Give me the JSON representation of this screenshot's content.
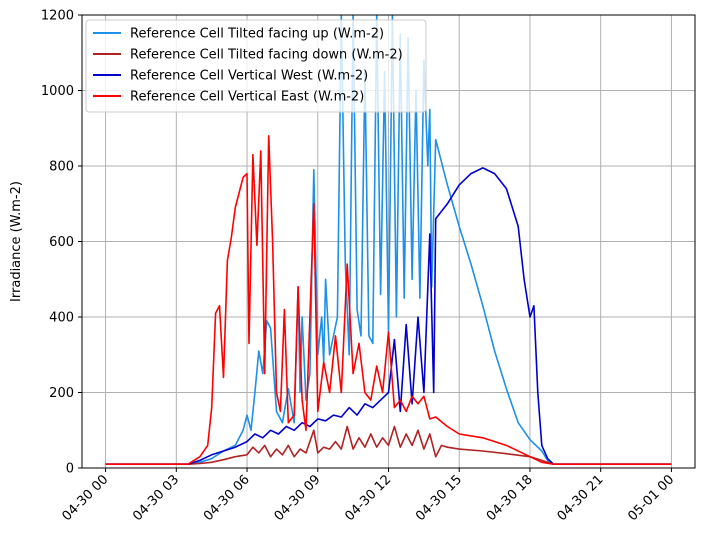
{
  "chart_data": {
    "type": "line",
    "title": "",
    "xlabel": "",
    "ylabel": "Irradiance (W.m-2)",
    "ylim": [
      0,
      1200
    ],
    "xlim": [
      "04-29 23:00",
      "05-01 01:00"
    ],
    "yticks": [
      0,
      200,
      400,
      600,
      800,
      1000,
      1200
    ],
    "xticks": [
      "04-30 00",
      "04-30 03",
      "04-30 06",
      "04-30 09",
      "04-30 12",
      "04-30 15",
      "04-30 18",
      "04-30 21",
      "05-01 00"
    ],
    "grid": true,
    "legend_position": "upper-left",
    "series": [
      {
        "name": "Reference Cell Tilted facing up (W.m-2)",
        "color": "#1E90E8",
        "points": [
          [
            "04-30 00:00",
            10
          ],
          [
            "04-30 03:00",
            10
          ],
          [
            "04-30 03:30",
            10
          ],
          [
            "04-30 04:00",
            15
          ],
          [
            "04-30 04:30",
            25
          ],
          [
            "04-30 05:00",
            45
          ],
          [
            "04-30 05:30",
            60
          ],
          [
            "04-30 05:50",
            100
          ],
          [
            "04-30 06:00",
            140
          ],
          [
            "04-30 06:10",
            100
          ],
          [
            "04-30 06:20",
            200
          ],
          [
            "04-30 06:30",
            310
          ],
          [
            "04-30 06:40",
            250
          ],
          [
            "04-30 06:50",
            390
          ],
          [
            "04-30 07:00",
            370
          ],
          [
            "04-30 07:15",
            150
          ],
          [
            "04-30 07:30",
            120
          ],
          [
            "04-30 07:45",
            210
          ],
          [
            "04-30 08:00",
            120
          ],
          [
            "04-30 08:10",
            480
          ],
          [
            "04-30 08:15",
            200
          ],
          [
            "04-30 08:20",
            400
          ],
          [
            "04-30 08:30",
            180
          ],
          [
            "04-30 08:40",
            250
          ],
          [
            "04-30 08:50",
            790
          ],
          [
            "04-30 09:00",
            300
          ],
          [
            "04-30 09:10",
            400
          ],
          [
            "04-30 09:15",
            280
          ],
          [
            "04-30 09:20",
            500
          ],
          [
            "04-30 09:30",
            300
          ],
          [
            "04-30 09:40",
            350
          ],
          [
            "04-30 09:50",
            400
          ],
          [
            "04-30 10:00",
            1200
          ],
          [
            "04-30 10:10",
            540
          ],
          [
            "04-30 10:20",
            300
          ],
          [
            "04-30 10:30",
            1200
          ],
          [
            "04-30 10:40",
            420
          ],
          [
            "04-30 10:50",
            350
          ],
          [
            "04-30 11:00",
            1050
          ],
          [
            "04-30 11:10",
            350
          ],
          [
            "04-30 11:20",
            330
          ],
          [
            "04-30 11:30",
            1200
          ],
          [
            "04-30 11:40",
            460
          ],
          [
            "04-30 11:50",
            1050
          ],
          [
            "04-30 12:00",
            360
          ],
          [
            "04-30 12:10",
            1200
          ],
          [
            "04-30 12:20",
            400
          ],
          [
            "04-30 12:30",
            1150
          ],
          [
            "04-30 12:40",
            450
          ],
          [
            "04-30 12:50",
            1140
          ],
          [
            "04-30 13:00",
            500
          ],
          [
            "04-30 13:10",
            1000
          ],
          [
            "04-30 13:20",
            450
          ],
          [
            "04-30 13:30",
            1080
          ],
          [
            "04-30 13:40",
            800
          ],
          [
            "04-30 13:45",
            950
          ],
          [
            "04-30 13:50",
            480
          ],
          [
            "04-30 14:00",
            870
          ],
          [
            "04-30 14:30",
            750
          ],
          [
            "04-30 15:00",
            640
          ],
          [
            "04-30 15:30",
            540
          ],
          [
            "04-30 16:00",
            430
          ],
          [
            "04-30 16:30",
            310
          ],
          [
            "04-30 17:00",
            210
          ],
          [
            "04-30 17:30",
            120
          ],
          [
            "04-30 18:00",
            75
          ],
          [
            "04-30 18:30",
            45
          ],
          [
            "04-30 18:45",
            20
          ],
          [
            "04-30 19:00",
            10
          ],
          [
            "05-01 00:00",
            10
          ]
        ]
      },
      {
        "name": "Reference Cell Tilted facing down (W.m-2)",
        "color": "#B22222",
        "points": [
          [
            "04-30 00:00",
            10
          ],
          [
            "04-30 03:00",
            10
          ],
          [
            "04-30 03:30",
            10
          ],
          [
            "04-30 04:00",
            12
          ],
          [
            "04-30 04:30",
            15
          ],
          [
            "04-30 05:00",
            22
          ],
          [
            "04-30 05:30",
            30
          ],
          [
            "04-30 06:00",
            35
          ],
          [
            "04-30 06:15",
            55
          ],
          [
            "04-30 06:30",
            40
          ],
          [
            "04-30 06:45",
            60
          ],
          [
            "04-30 07:00",
            30
          ],
          [
            "04-30 07:15",
            50
          ],
          [
            "04-30 07:30",
            35
          ],
          [
            "04-30 07:45",
            60
          ],
          [
            "04-30 08:00",
            30
          ],
          [
            "04-30 08:15",
            50
          ],
          [
            "04-30 08:30",
            40
          ],
          [
            "04-30 08:50",
            100
          ],
          [
            "04-30 09:00",
            40
          ],
          [
            "04-30 09:15",
            55
          ],
          [
            "04-30 09:30",
            50
          ],
          [
            "04-30 09:45",
            70
          ],
          [
            "04-30 10:00",
            50
          ],
          [
            "04-30 10:15",
            110
          ],
          [
            "04-30 10:30",
            50
          ],
          [
            "04-30 10:45",
            80
          ],
          [
            "04-30 11:00",
            55
          ],
          [
            "04-30 11:15",
            90
          ],
          [
            "04-30 11:30",
            55
          ],
          [
            "04-30 11:45",
            80
          ],
          [
            "04-30 12:00",
            60
          ],
          [
            "04-30 12:15",
            110
          ],
          [
            "04-30 12:30",
            55
          ],
          [
            "04-30 12:45",
            90
          ],
          [
            "04-30 13:00",
            60
          ],
          [
            "04-30 13:15",
            100
          ],
          [
            "04-30 13:30",
            50
          ],
          [
            "04-30 13:45",
            90
          ],
          [
            "04-30 14:00",
            30
          ],
          [
            "04-30 14:15",
            60
          ],
          [
            "04-30 14:30",
            55
          ],
          [
            "04-30 15:00",
            50
          ],
          [
            "04-30 16:00",
            45
          ],
          [
            "04-30 17:00",
            38
          ],
          [
            "04-30 18:00",
            30
          ],
          [
            "04-30 18:30",
            20
          ],
          [
            "04-30 19:00",
            10
          ],
          [
            "05-01 00:00",
            10
          ]
        ]
      },
      {
        "name": "Reference Cell Vertical West (W.m-2)",
        "color": "#0000CD",
        "points": [
          [
            "04-30 00:00",
            10
          ],
          [
            "04-30 03:00",
            10
          ],
          [
            "04-30 03:30",
            10
          ],
          [
            "04-30 04:00",
            20
          ],
          [
            "04-30 04:30",
            35
          ],
          [
            "04-30 05:00",
            45
          ],
          [
            "04-30 05:30",
            55
          ],
          [
            "04-30 06:00",
            70
          ],
          [
            "04-30 06:20",
            90
          ],
          [
            "04-30 06:40",
            80
          ],
          [
            "04-30 07:00",
            100
          ],
          [
            "04-30 07:20",
            90
          ],
          [
            "04-30 07:40",
            110
          ],
          [
            "04-30 08:00",
            100
          ],
          [
            "04-30 08:20",
            120
          ],
          [
            "04-30 08:40",
            110
          ],
          [
            "04-30 09:00",
            130
          ],
          [
            "04-30 09:20",
            125
          ],
          [
            "04-30 09:40",
            140
          ],
          [
            "04-30 10:00",
            135
          ],
          [
            "04-30 10:20",
            160
          ],
          [
            "04-30 10:40",
            140
          ],
          [
            "04-30 11:00",
            170
          ],
          [
            "04-30 11:20",
            160
          ],
          [
            "04-30 11:40",
            180
          ],
          [
            "04-30 12:00",
            200
          ],
          [
            "04-30 12:15",
            340
          ],
          [
            "04-30 12:30",
            150
          ],
          [
            "04-30 12:45",
            380
          ],
          [
            "04-30 13:00",
            170
          ],
          [
            "04-30 13:15",
            400
          ],
          [
            "04-30 13:30",
            200
          ],
          [
            "04-30 13:45",
            620
          ],
          [
            "04-30 13:55",
            200
          ],
          [
            "04-30 14:00",
            660
          ],
          [
            "04-30 14:30",
            700
          ],
          [
            "04-30 15:00",
            750
          ],
          [
            "04-30 15:30",
            780
          ],
          [
            "04-30 16:00",
            795
          ],
          [
            "04-30 16:30",
            780
          ],
          [
            "04-30 17:00",
            740
          ],
          [
            "04-30 17:30",
            640
          ],
          [
            "04-30 17:45",
            500
          ],
          [
            "04-30 18:00",
            400
          ],
          [
            "04-30 18:10",
            430
          ],
          [
            "04-30 18:20",
            200
          ],
          [
            "04-30 18:30",
            60
          ],
          [
            "04-30 18:45",
            25
          ],
          [
            "04-30 19:00",
            10
          ],
          [
            "05-01 00:00",
            10
          ]
        ]
      },
      {
        "name": "Reference Cell Vertical East (W.m-2)",
        "color": "#FF0000",
        "points": [
          [
            "04-30 00:00",
            10
          ],
          [
            "04-30 03:00",
            10
          ],
          [
            "04-30 03:30",
            10
          ],
          [
            "04-30 04:00",
            30
          ],
          [
            "04-30 04:20",
            60
          ],
          [
            "04-30 04:30",
            160
          ],
          [
            "04-30 04:40",
            410
          ],
          [
            "04-30 04:50",
            430
          ],
          [
            "04-30 05:00",
            240
          ],
          [
            "04-30 05:10",
            550
          ],
          [
            "04-30 05:20",
            610
          ],
          [
            "04-30 05:30",
            690
          ],
          [
            "04-30 05:40",
            730
          ],
          [
            "04-30 05:50",
            770
          ],
          [
            "04-30 06:00",
            780
          ],
          [
            "04-30 06:05",
            330
          ],
          [
            "04-30 06:15",
            830
          ],
          [
            "04-30 06:25",
            590
          ],
          [
            "04-30 06:35",
            840
          ],
          [
            "04-30 06:45",
            250
          ],
          [
            "04-30 06:55",
            880
          ],
          [
            "04-30 07:05",
            600
          ],
          [
            "04-30 07:15",
            200
          ],
          [
            "04-30 07:25",
            150
          ],
          [
            "04-30 07:35",
            420
          ],
          [
            "04-30 07:45",
            120
          ],
          [
            "04-30 08:00",
            140
          ],
          [
            "04-30 08:10",
            480
          ],
          [
            "04-30 08:20",
            180
          ],
          [
            "04-30 08:30",
            100
          ],
          [
            "04-30 08:50",
            700
          ],
          [
            "04-30 09:00",
            150
          ],
          [
            "04-30 09:15",
            280
          ],
          [
            "04-30 09:30",
            200
          ],
          [
            "04-30 09:45",
            350
          ],
          [
            "04-30 10:00",
            200
          ],
          [
            "04-30 10:15",
            540
          ],
          [
            "04-30 10:30",
            250
          ],
          [
            "04-30 10:45",
            330
          ],
          [
            "04-30 11:00",
            200
          ],
          [
            "04-30 11:15",
            180
          ],
          [
            "04-30 11:30",
            270
          ],
          [
            "04-30 11:45",
            200
          ],
          [
            "04-30 12:00",
            360
          ],
          [
            "04-30 12:15",
            160
          ],
          [
            "04-30 12:30",
            180
          ],
          [
            "04-30 12:45",
            150
          ],
          [
            "04-30 13:00",
            190
          ],
          [
            "04-30 13:15",
            170
          ],
          [
            "04-30 13:30",
            190
          ],
          [
            "04-30 13:45",
            130
          ],
          [
            "04-30 14:00",
            135
          ],
          [
            "04-30 14:30",
            110
          ],
          [
            "04-30 15:00",
            90
          ],
          [
            "04-30 16:00",
            80
          ],
          [
            "04-30 17:00",
            60
          ],
          [
            "04-30 18:00",
            30
          ],
          [
            "04-30 18:30",
            15
          ],
          [
            "04-30 19:00",
            10
          ],
          [
            "05-01 00:00",
            10
          ]
        ]
      }
    ]
  }
}
